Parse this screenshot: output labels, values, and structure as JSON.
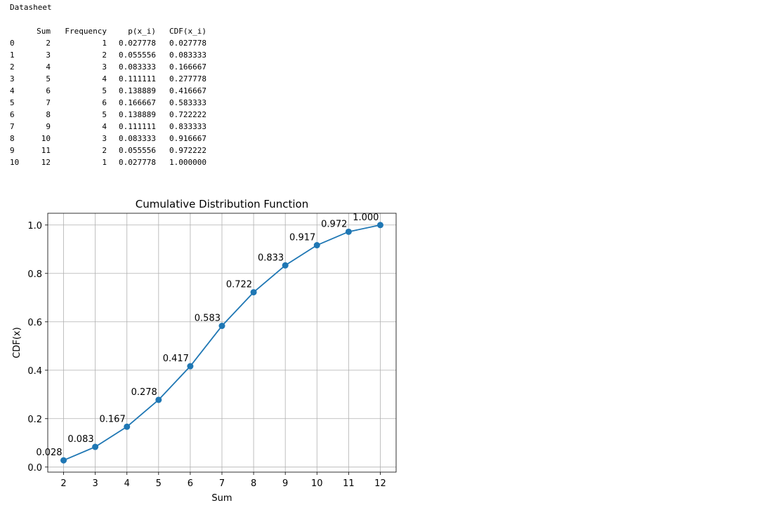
{
  "page": {
    "heading": "Datasheet"
  },
  "table": {
    "columns": [
      "",
      "Sum",
      "Frequency",
      "p(x_i)",
      "CDF(x_i)"
    ],
    "rows": [
      [
        "0",
        "2",
        "1",
        "0.027778",
        "0.027778"
      ],
      [
        "1",
        "3",
        "2",
        "0.055556",
        "0.083333"
      ],
      [
        "2",
        "4",
        "3",
        "0.083333",
        "0.166667"
      ],
      [
        "3",
        "5",
        "4",
        "0.111111",
        "0.277778"
      ],
      [
        "4",
        "6",
        "5",
        "0.138889",
        "0.416667"
      ],
      [
        "5",
        "7",
        "6",
        "0.166667",
        "0.583333"
      ],
      [
        "6",
        "8",
        "5",
        "0.138889",
        "0.722222"
      ],
      [
        "7",
        "9",
        "4",
        "0.111111",
        "0.833333"
      ],
      [
        "8",
        "10",
        "3",
        "0.083333",
        "0.916667"
      ],
      [
        "9",
        "11",
        "2",
        "0.055556",
        "0.972222"
      ],
      [
        "10",
        "12",
        "1",
        "0.027778",
        "1.000000"
      ]
    ]
  },
  "chart_data": {
    "type": "line",
    "title": "Cumulative Distribution Function",
    "xlabel": "Sum",
    "ylabel": "CDF(x)",
    "x": [
      2,
      3,
      4,
      5,
      6,
      7,
      8,
      9,
      10,
      11,
      12
    ],
    "series": [
      {
        "values": [
          0.027778,
          0.083333,
          0.166667,
          0.277778,
          0.416667,
          0.583333,
          0.722222,
          0.833333,
          0.916667,
          0.972222,
          1.0
        ],
        "data_labels": [
          "0.028",
          "0.083",
          "0.167",
          "0.278",
          "0.417",
          "0.583",
          "0.722",
          "0.833",
          "0.917",
          "0.972",
          "1.000"
        ],
        "color": "#1f77b4",
        "marker": "circle"
      }
    ],
    "xticks": [
      2,
      3,
      4,
      5,
      6,
      7,
      8,
      9,
      10,
      11,
      12
    ],
    "yticks": [
      0.0,
      0.2,
      0.4,
      0.6,
      0.8,
      1.0
    ],
    "ytick_labels": [
      "0.0",
      "0.2",
      "0.4",
      "0.6",
      "0.8",
      "1.0"
    ],
    "xlim": [
      1.5,
      12.5
    ],
    "ylim": [
      -0.0209,
      1.0486
    ],
    "grid": true,
    "legend": "none"
  }
}
